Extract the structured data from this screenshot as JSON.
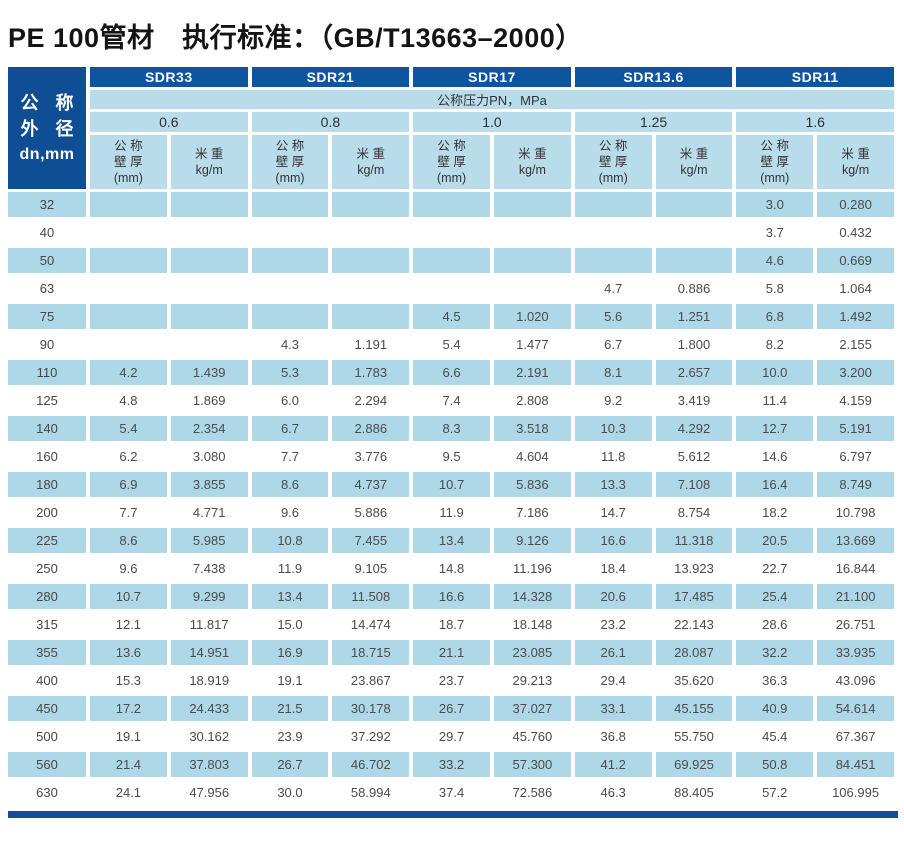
{
  "title": "PE 100管材　执行标准：（GB/T13663–2000）",
  "colors": {
    "header_blue": "#0e55a0",
    "corner_blue": "#0f4e95",
    "light_blue_cell": "#aed8e7",
    "header_light_blue": "#b9dcea",
    "bottom_bar_blue": "#0e4f9b"
  },
  "table": {
    "corner_header": {
      "line1": "公 称",
      "line2": "外 径",
      "line3": "dn,mm"
    },
    "sdr_groups": {
      "0": "SDR33",
      "1": "SDR21",
      "2": "SDR17",
      "3": "SDR13.6",
      "4": "SDR11"
    },
    "pressure_title": "公称压力PN，MPa",
    "pressures": {
      "0": "0.6",
      "1": "0.8",
      "2": "1.0",
      "3": "1.25",
      "4": "1.6"
    },
    "col_headers": {
      "thickness_l1": "公 称",
      "thickness_l2": "壁 厚",
      "thickness_l3": "(mm)",
      "weight_l1": "米 重",
      "weight_l2": "kg/m"
    },
    "rows": [
      {
        "dn": "32",
        "cells": [
          "",
          "",
          "",
          "",
          "",
          "",
          "",
          "",
          "3.0",
          "0.280"
        ]
      },
      {
        "dn": "40",
        "cells": [
          "",
          "",
          "",
          "",
          "",
          "",
          "",
          "",
          "3.7",
          "0.432"
        ]
      },
      {
        "dn": "50",
        "cells": [
          "",
          "",
          "",
          "",
          "",
          "",
          "",
          "",
          "4.6",
          "0.669"
        ]
      },
      {
        "dn": "63",
        "cells": [
          "",
          "",
          "",
          "",
          "",
          "",
          "4.7",
          "0.886",
          "5.8",
          "1.064"
        ]
      },
      {
        "dn": "75",
        "cells": [
          "",
          "",
          "",
          "",
          "4.5",
          "1.020",
          "5.6",
          "1.251",
          "6.8",
          "1.492"
        ]
      },
      {
        "dn": "90",
        "cells": [
          "",
          "",
          "4.3",
          "1.191",
          "5.4",
          "1.477",
          "6.7",
          "1.800",
          "8.2",
          "2.155"
        ]
      },
      {
        "dn": "110",
        "cells": [
          "4.2",
          "1.439",
          "5.3",
          "1.783",
          "6.6",
          "2.191",
          "8.1",
          "2.657",
          "10.0",
          "3.200"
        ]
      },
      {
        "dn": "125",
        "cells": [
          "4.8",
          "1.869",
          "6.0",
          "2.294",
          "7.4",
          "2.808",
          "9.2",
          "3.419",
          "11.4",
          "4.159"
        ]
      },
      {
        "dn": "140",
        "cells": [
          "5.4",
          "2.354",
          "6.7",
          "2.886",
          "8.3",
          "3.518",
          "10.3",
          "4.292",
          "12.7",
          "5.191"
        ]
      },
      {
        "dn": "160",
        "cells": [
          "6.2",
          "3.080",
          "7.7",
          "3.776",
          "9.5",
          "4.604",
          "11.8",
          "5.612",
          "14.6",
          "6.797"
        ]
      },
      {
        "dn": "180",
        "cells": [
          "6.9",
          "3.855",
          "8.6",
          "4.737",
          "10.7",
          "5.836",
          "13.3",
          "7.108",
          "16.4",
          "8.749"
        ]
      },
      {
        "dn": "200",
        "cells": [
          "7.7",
          "4.771",
          "9.6",
          "5.886",
          "11.9",
          "7.186",
          "14.7",
          "8.754",
          "18.2",
          "10.798"
        ]
      },
      {
        "dn": "225",
        "cells": [
          "8.6",
          "5.985",
          "10.8",
          "7.455",
          "13.4",
          "9.126",
          "16.6",
          "11.318",
          "20.5",
          "13.669"
        ]
      },
      {
        "dn": "250",
        "cells": [
          "9.6",
          "7.438",
          "11.9",
          "9.105",
          "14.8",
          "11.196",
          "18.4",
          "13.923",
          "22.7",
          "16.844"
        ]
      },
      {
        "dn": "280",
        "cells": [
          "10.7",
          "9.299",
          "13.4",
          "11.508",
          "16.6",
          "14.328",
          "20.6",
          "17.485",
          "25.4",
          "21.100"
        ]
      },
      {
        "dn": "315",
        "cells": [
          "12.1",
          "11.817",
          "15.0",
          "14.474",
          "18.7",
          "18.148",
          "23.2",
          "22.143",
          "28.6",
          "26.751"
        ]
      },
      {
        "dn": "355",
        "cells": [
          "13.6",
          "14.951",
          "16.9",
          "18.715",
          "21.1",
          "23.085",
          "26.1",
          "28.087",
          "32.2",
          "33.935"
        ]
      },
      {
        "dn": "400",
        "cells": [
          "15.3",
          "18.919",
          "19.1",
          "23.867",
          "23.7",
          "29.213",
          "29.4",
          "35.620",
          "36.3",
          "43.096"
        ]
      },
      {
        "dn": "450",
        "cells": [
          "17.2",
          "24.433",
          "21.5",
          "30.178",
          "26.7",
          "37.027",
          "33.1",
          "45.155",
          "40.9",
          "54.614"
        ]
      },
      {
        "dn": "500",
        "cells": [
          "19.1",
          "30.162",
          "23.9",
          "37.292",
          "29.7",
          "45.760",
          "36.8",
          "55.750",
          "45.4",
          "67.367"
        ]
      },
      {
        "dn": "560",
        "cells": [
          "21.4",
          "37.803",
          "26.7",
          "46.702",
          "33.2",
          "57.300",
          "41.2",
          "69.925",
          "50.8",
          "84.451"
        ]
      },
      {
        "dn": "630",
        "cells": [
          "24.1",
          "47.956",
          "30.0",
          "58.994",
          "37.4",
          "72.586",
          "46.3",
          "88.405",
          "57.2",
          "106.995"
        ]
      }
    ]
  }
}
